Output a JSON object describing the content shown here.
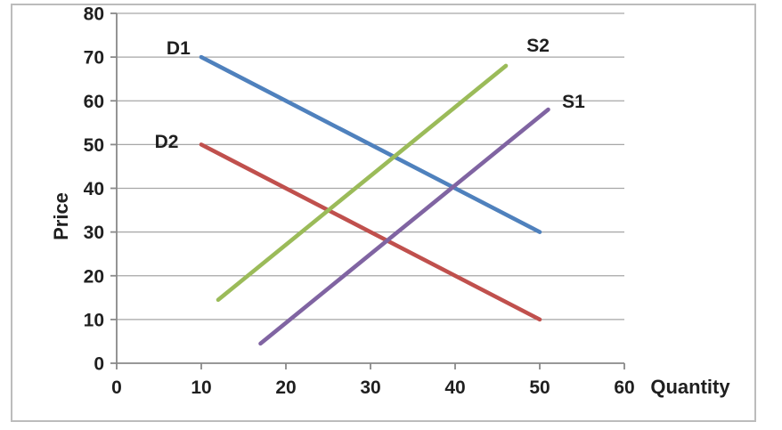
{
  "chart_data": {
    "type": "line",
    "title": "",
    "xlabel": "Quantity",
    "ylabel": "Price",
    "xlim": [
      0,
      60
    ],
    "ylim": [
      0,
      80
    ],
    "x_ticks": [
      0,
      10,
      20,
      30,
      40,
      50,
      60
    ],
    "y_ticks": [
      0,
      10,
      20,
      30,
      40,
      50,
      60,
      70,
      80
    ],
    "grid": "horizontal-only",
    "legend_position": "none-inline-labels",
    "series": [
      {
        "name": "D1",
        "role": "demand-curve-1",
        "color": "#4F81BD",
        "points": [
          [
            10,
            70
          ],
          [
            50,
            30
          ]
        ],
        "label_at": [
          7.3,
          70.6
        ]
      },
      {
        "name": "D2",
        "role": "demand-curve-2",
        "color": "#C0504D",
        "points": [
          [
            10,
            50
          ],
          [
            50,
            10
          ]
        ],
        "label_at": [
          5.9,
          49.3
        ]
      },
      {
        "name": "S2",
        "role": "supply-curve-2",
        "color": "#9BBB59",
        "points": [
          [
            12,
            14.5
          ],
          [
            46,
            68
          ]
        ],
        "label_at": [
          49.8,
          71.2
        ]
      },
      {
        "name": "S1",
        "role": "supply-curve-1",
        "color": "#8064A2",
        "points": [
          [
            17,
            4.5
          ],
          [
            51,
            58
          ]
        ],
        "label_at": [
          54.0,
          58.4
        ]
      }
    ]
  },
  "style_colors": {
    "frame_border": "#bcbcbc",
    "axis_line": "#898989",
    "grid_line": "#a6a6a6",
    "text": "#1f1f1f",
    "background": "#ffffff"
  }
}
